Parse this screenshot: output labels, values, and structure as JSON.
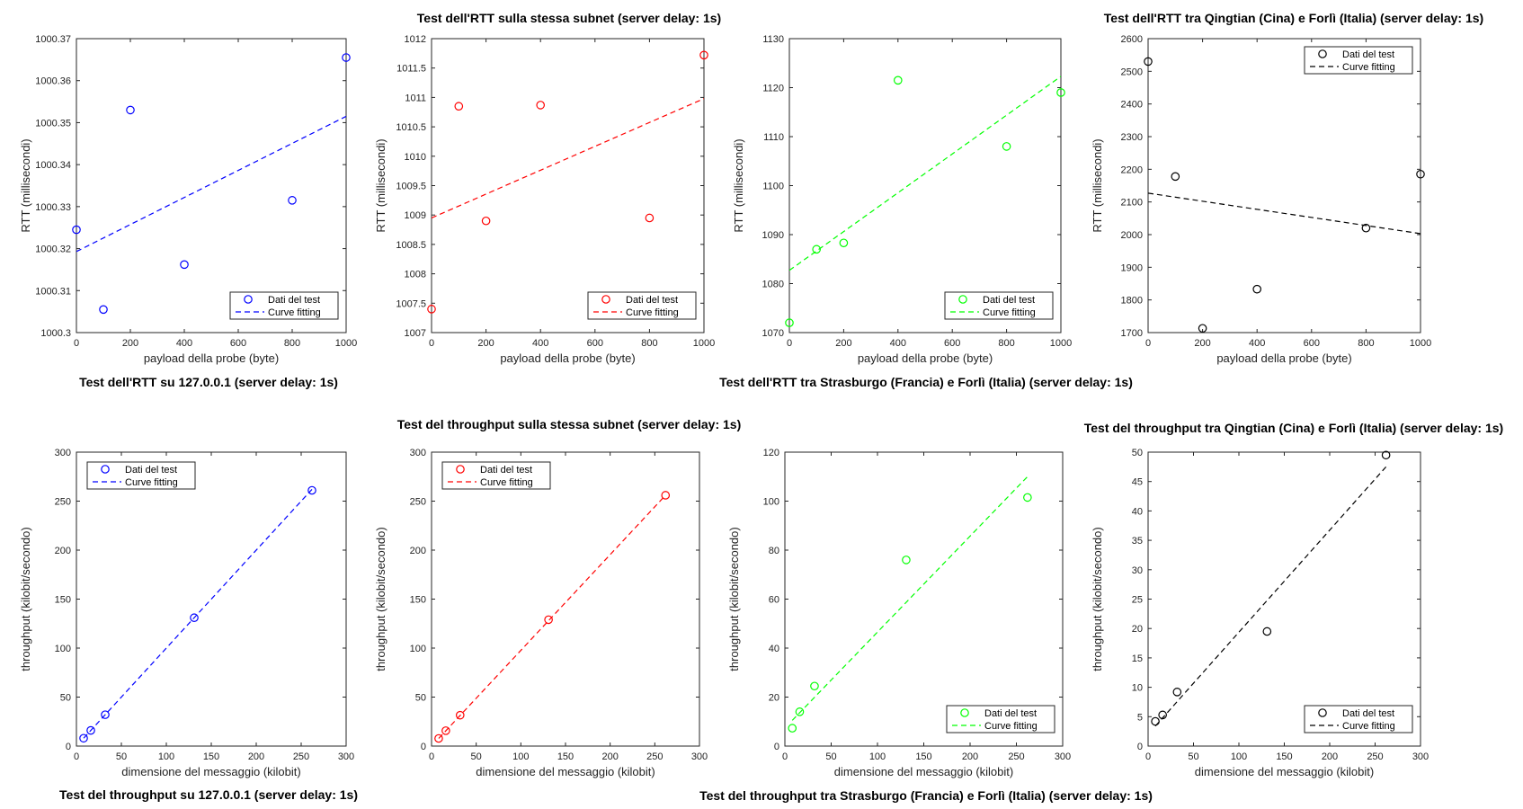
{
  "chart_data": [
    {
      "type": "scatter",
      "title": "Test dell'RTT su 127.0.0.1 (server delay: 1s)",
      "xlabel": "payload della probe (byte)",
      "ylabel": "RTT (millisecondi)",
      "xlim": [
        0,
        1000
      ],
      "ylim": [
        1000.3,
        1000.37
      ],
      "xticks": [
        "0",
        "200",
        "400",
        "600",
        "800",
        "1000"
      ],
      "yticks": [
        "1000.3",
        "1000.31",
        "1000.32",
        "1000.33",
        "1000.34",
        "1000.35",
        "1000.36",
        "1000.37"
      ],
      "grid": false,
      "legend": "bottom-right",
      "color": "#0000ff",
      "series": [
        {
          "name": "Dati del test",
          "style": "markers",
          "x": [
            0,
            100,
            200,
            400,
            800,
            1000
          ],
          "y": [
            1000.3245,
            1000.3055,
            1000.353,
            1000.3162,
            1000.3315,
            1000.3655
          ]
        },
        {
          "name": "Curve fitting",
          "style": "dashed-line",
          "x": [
            0,
            1000
          ],
          "y": [
            1000.3193,
            1000.3515
          ]
        }
      ]
    },
    {
      "type": "scatter",
      "title": "Test dell'RTT sulla stessa subnet (server delay: 1s)",
      "xlabel": "payload della probe (byte)",
      "ylabel": "RTT (millisecondi)",
      "xlim": [
        0,
        1000
      ],
      "ylim": [
        1007,
        1012
      ],
      "xticks": [
        "0",
        "200",
        "400",
        "600",
        "800",
        "1000"
      ],
      "yticks": [
        "1007",
        "1007.5",
        "1008",
        "1008.5",
        "1009",
        "1009.5",
        "1010",
        "1010.5",
        "1011",
        "1011.5",
        "1012"
      ],
      "grid": false,
      "legend": "bottom-right",
      "color": "#ff0000",
      "series": [
        {
          "name": "Dati del test",
          "style": "markers",
          "x": [
            0,
            100,
            200,
            400,
            800,
            1000
          ],
          "y": [
            1007.4,
            1010.85,
            1008.9,
            1010.87,
            1008.95,
            1011.72
          ]
        },
        {
          "name": "Curve fitting",
          "style": "dashed-line",
          "x": [
            0,
            1000
          ],
          "y": [
            1008.95,
            1010.98
          ]
        }
      ]
    },
    {
      "type": "scatter",
      "title": "Test dell'RTT tra Strasburgo (Francia) e Forlì (Italia) (server delay: 1s)",
      "xlabel": "payload della probe (byte)",
      "ylabel": "RTT (millisecondi)",
      "xlim": [
        0,
        1000
      ],
      "ylim": [
        1070,
        1130
      ],
      "xticks": [
        "0",
        "200",
        "400",
        "600",
        "800",
        "1000"
      ],
      "yticks": [
        "1070",
        "1080",
        "1090",
        "1100",
        "1110",
        "1120",
        "1130"
      ],
      "grid": false,
      "legend": "bottom-right",
      "color": "#00ff00",
      "series": [
        {
          "name": "Dati del test",
          "style": "markers",
          "x": [
            0,
            100,
            200,
            400,
            800,
            1000
          ],
          "y": [
            1072,
            1087,
            1088.3,
            1121.5,
            1108,
            1119
          ]
        },
        {
          "name": "Curve fitting",
          "style": "dashed-line",
          "x": [
            0,
            1000
          ],
          "y": [
            1082.7,
            1122.3
          ]
        }
      ]
    },
    {
      "type": "scatter",
      "title": "Test dell'RTT tra Qingtian (Cina) e Forlì (Italia) (server delay: 1s)",
      "xlabel": "payload della probe (byte)",
      "ylabel": "RTT (millisecondi)",
      "xlim": [
        0,
        1000
      ],
      "ylim": [
        1700,
        2600
      ],
      "xticks": [
        "0",
        "200",
        "400",
        "600",
        "800",
        "1000"
      ],
      "yticks": [
        "1700",
        "1800",
        "1900",
        "2000",
        "2100",
        "2200",
        "2300",
        "2400",
        "2500",
        "2600"
      ],
      "grid": false,
      "legend": "top-right",
      "color": "#000000",
      "series": [
        {
          "name": "Dati del test",
          "style": "markers",
          "x": [
            0,
            100,
            200,
            400,
            800,
            1000
          ],
          "y": [
            2530,
            2178,
            1713,
            1833,
            2020,
            2185
          ]
        },
        {
          "name": "Curve fitting",
          "style": "dashed-line",
          "x": [
            0,
            1000
          ],
          "y": [
            2127,
            2003
          ]
        }
      ]
    },
    {
      "type": "scatter",
      "title": "Test del throughput su 127.0.0.1 (server delay: 1s)",
      "xlabel": "dimensione del messaggio (kilobit)",
      "ylabel": "throughput (kilobit/secondo)",
      "xlim": [
        0,
        300
      ],
      "ylim": [
        0,
        300
      ],
      "xticks": [
        "0",
        "50",
        "100",
        "150",
        "200",
        "250",
        "300"
      ],
      "yticks": [
        "0",
        "50",
        "100",
        "150",
        "200",
        "250",
        "300"
      ],
      "grid": false,
      "legend": "top-left",
      "color": "#0000ff",
      "series": [
        {
          "name": "Dati del test",
          "style": "markers",
          "x": [
            8,
            16,
            32,
            131,
            262
          ],
          "y": [
            8,
            16,
            32,
            131,
            261
          ]
        },
        {
          "name": "Curve fitting",
          "style": "dashed-line",
          "x": [
            8,
            262
          ],
          "y": [
            8,
            262
          ]
        }
      ]
    },
    {
      "type": "scatter",
      "title": "Test del throughput sulla stessa subnet (server delay: 1s)",
      "xlabel": "dimensione del messaggio (kilobit)",
      "ylabel": "throughput (kilobit/secondo)",
      "xlim": [
        0,
        300
      ],
      "ylim": [
        0,
        300
      ],
      "xticks": [
        "0",
        "50",
        "100",
        "150",
        "200",
        "250",
        "300"
      ],
      "yticks": [
        "0",
        "50",
        "100",
        "150",
        "200",
        "250",
        "300"
      ],
      "grid": false,
      "legend": "top-left",
      "color": "#ff0000",
      "series": [
        {
          "name": "Dati del test",
          "style": "markers",
          "x": [
            8,
            16,
            32,
            131,
            262
          ],
          "y": [
            7.8,
            15.7,
            31.5,
            129,
            256
          ]
        },
        {
          "name": "Curve fitting",
          "style": "dashed-line",
          "x": [
            8,
            262
          ],
          "y": [
            7.8,
            256
          ]
        }
      ]
    },
    {
      "type": "scatter",
      "title": "Test del throughput tra Strasburgo (Francia) e Forlì (Italia) (server delay: 1s)",
      "xlabel": "dimensione del messaggio (kilobit)",
      "ylabel": "throughput (kilobit/secondo)",
      "xlim": [
        0,
        300
      ],
      "ylim": [
        0,
        120
      ],
      "xticks": [
        "0",
        "50",
        "100",
        "150",
        "200",
        "250",
        "300"
      ],
      "yticks": [
        "0",
        "20",
        "40",
        "60",
        "80",
        "100",
        "120"
      ],
      "grid": false,
      "legend": "bottom-right",
      "color": "#00ff00",
      "series": [
        {
          "name": "Dati del test",
          "style": "markers",
          "x": [
            8,
            16,
            32,
            131,
            262
          ],
          "y": [
            7.3,
            14,
            24.5,
            76,
            101.5
          ]
        },
        {
          "name": "Curve fitting",
          "style": "dashed-line",
          "x": [
            8,
            262
          ],
          "y": [
            10.5,
            110
          ]
        }
      ]
    },
    {
      "type": "scatter",
      "title": "Test del throughput tra Qingtian (Cina) e Forlì (Italia) (server delay: 1s)",
      "xlabel": "dimensione del messaggio (kilobit)",
      "ylabel": "throughput (kilobit/secondo)",
      "xlim": [
        0,
        300
      ],
      "ylim": [
        0,
        50
      ],
      "xticks": [
        "0",
        "50",
        "100",
        "150",
        "200",
        "250",
        "300"
      ],
      "yticks": [
        "0",
        "5",
        "10",
        "15",
        "20",
        "25",
        "30",
        "35",
        "40",
        "45",
        "50"
      ],
      "grid": false,
      "legend": "bottom-right",
      "color": "#000000",
      "series": [
        {
          "name": "Dati del test",
          "style": "markers",
          "x": [
            8,
            16,
            32,
            131,
            262
          ],
          "y": [
            4.2,
            5.3,
            9.2,
            19.5,
            49.5
          ]
        },
        {
          "name": "Curve fitting",
          "style": "dashed-line",
          "x": [
            8,
            262
          ],
          "y": [
            3.4,
            47.5
          ]
        }
      ]
    }
  ]
}
